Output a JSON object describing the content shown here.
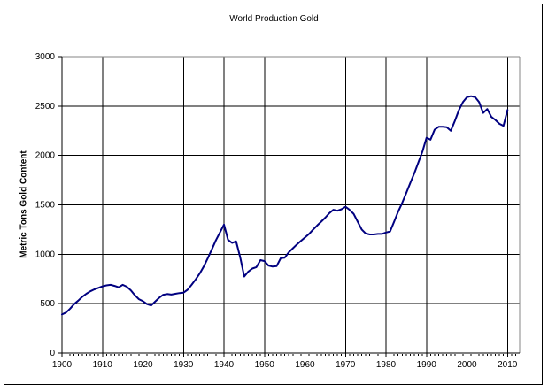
{
  "figure": {
    "background": "#FFFFFF",
    "border_color": "#000000",
    "plot_border_gray": "#848484",
    "gridline_color": "#000000"
  },
  "chart_data": {
    "type": "line",
    "title": "World Production Gold",
    "xlabel": "",
    "ylabel": "Metric Tons Gold Content",
    "xlim": [
      1900,
      2013
    ],
    "ylim": [
      0,
      3000
    ],
    "x_ticks": [
      1900,
      1910,
      1920,
      1930,
      1940,
      1950,
      1960,
      1970,
      1980,
      1990,
      2000,
      2010
    ],
    "y_ticks": [
      0,
      500,
      1000,
      1500,
      2000,
      2500,
      3000
    ],
    "grid": "both-major",
    "legend_position": "none",
    "line_color": "#000080",
    "line_width": 2,
    "series": [
      {
        "name": "World Production Gold",
        "x_start": 1900,
        "x_step": 1,
        "values": [
          390,
          410,
          450,
          495,
          530,
          570,
          600,
          625,
          645,
          660,
          675,
          685,
          690,
          680,
          665,
          690,
          672,
          635,
          585,
          545,
          525,
          495,
          482,
          520,
          560,
          590,
          597,
          592,
          600,
          607,
          612,
          640,
          690,
          745,
          805,
          875,
          960,
          1050,
          1140,
          1220,
          1300,
          1145,
          1115,
          1130,
          970,
          775,
          825,
          855,
          870,
          940,
          930,
          885,
          875,
          880,
          960,
          965,
          1020,
          1060,
          1100,
          1135,
          1170,
          1205,
          1250,
          1290,
          1330,
          1370,
          1415,
          1450,
          1440,
          1455,
          1480,
          1450,
          1410,
          1330,
          1250,
          1210,
          1200,
          1200,
          1205,
          1205,
          1220,
          1230,
          1330,
          1430,
          1520,
          1620,
          1720,
          1820,
          1930,
          2040,
          2180,
          2160,
          2260,
          2290,
          2290,
          2285,
          2250,
          2350,
          2460,
          2540,
          2590,
          2600,
          2590,
          2540,
          2430,
          2470,
          2390,
          2360,
          2320,
          2300,
          2460
        ]
      }
    ]
  }
}
